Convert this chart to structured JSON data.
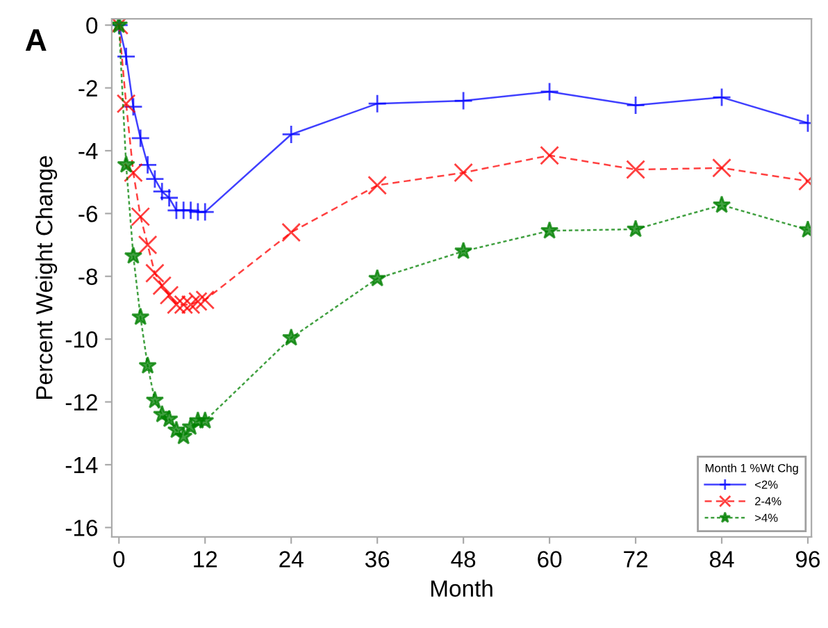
{
  "chart_data": {
    "type": "line",
    "xlabel": "Month",
    "ylabel": "Percent Weight Change",
    "annotations": [
      "A"
    ],
    "legend_title": "Month 1 %Wt Chg",
    "legend": "bottom right",
    "grid": false,
    "x": [
      0,
      1,
      2,
      3,
      4,
      5,
      6,
      7,
      8,
      9,
      10,
      11,
      12,
      24,
      36,
      48,
      60,
      72,
      84,
      96
    ],
    "xlim": [
      -1,
      96.5
    ],
    "xticks": [
      0,
      12,
      24,
      36,
      48,
      60,
      72,
      84,
      96
    ],
    "ylim": [
      -16.3,
      0.2
    ],
    "yticks": [
      0,
      -2,
      -4,
      -6,
      -8,
      -10,
      -12,
      -14,
      -16
    ],
    "series": [
      {
        "name": "<2%",
        "color": "#0000ff",
        "marker": "plus",
        "line_style": "solid",
        "values": [
          0,
          -1.0,
          -2.6,
          -3.6,
          -4.45,
          -4.9,
          -5.3,
          -5.5,
          -5.9,
          -5.9,
          -5.9,
          -5.95,
          -5.95,
          -3.48,
          -2.5,
          -2.41,
          -2.12,
          -2.55,
          -2.3,
          -3.12
        ]
      },
      {
        "name": "2-4%",
        "color": "#ff0000",
        "marker": "cross",
        "line_style": "dashed",
        "values": [
          0,
          -2.5,
          -4.7,
          -6.1,
          -7.0,
          -7.9,
          -8.3,
          -8.6,
          -8.9,
          -8.9,
          -8.9,
          -8.8,
          -8.75,
          -6.6,
          -5.1,
          -4.7,
          -4.15,
          -4.6,
          -4.55,
          -4.97
        ]
      },
      {
        "name": ">4%",
        "color": "#008000",
        "marker": "star",
        "line_style": "dotted",
        "values": [
          0,
          -4.45,
          -7.35,
          -9.3,
          -10.85,
          -11.95,
          -12.4,
          -12.55,
          -12.9,
          -13.1,
          -12.8,
          -12.6,
          -12.6,
          -9.96,
          -8.07,
          -7.2,
          -6.55,
          -6.5,
          -5.73,
          -6.52
        ]
      }
    ]
  }
}
